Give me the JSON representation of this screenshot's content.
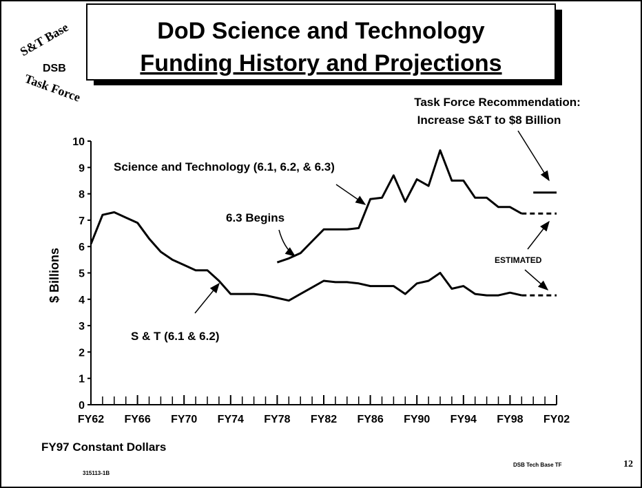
{
  "chart_data": {
    "type": "line",
    "title_lines": [
      "DoD Science and Technology",
      "Funding History and Projections"
    ],
    "logo": [
      "S&T Base",
      "DSB",
      "Task Force"
    ],
    "ylabel": "$ Billions",
    "xlabel_note": "FY97 Constant Dollars",
    "footer_left": "315113-1B",
    "footer_right": "DSB Tech Base TF",
    "page_number": "12",
    "xlim": [
      1962,
      2002
    ],
    "ylim": [
      0,
      10
    ],
    "yticks": [
      0,
      1,
      2,
      3,
      4,
      5,
      6,
      7,
      8,
      9,
      10
    ],
    "xticks": [
      {
        "value": 1962,
        "label": "FY62"
      },
      {
        "value": 1966,
        "label": "FY66"
      },
      {
        "value": 1970,
        "label": "FY70"
      },
      {
        "value": 1974,
        "label": "FY74"
      },
      {
        "value": 1978,
        "label": "FY78"
      },
      {
        "value": 1982,
        "label": "FY82"
      },
      {
        "value": 1986,
        "label": "FY86"
      },
      {
        "value": 1990,
        "label": "FY90"
      },
      {
        "value": 1994,
        "label": "FY94"
      },
      {
        "value": 1998,
        "label": "FY98"
      },
      {
        "value": 2002,
        "label": "FY02"
      }
    ],
    "xminor_ticks": [
      1962,
      1963,
      1964,
      1965,
      1966,
      1967,
      1968,
      1969,
      1970,
      1971,
      1972,
      1973,
      1974,
      1975,
      1976,
      1977,
      1978,
      1979,
      1980,
      1981,
      1982,
      1983,
      1984,
      1985,
      1986,
      1987,
      1988,
      1989,
      1990,
      1991,
      1992,
      1993,
      1994,
      1995,
      1996,
      1997,
      1998,
      1999,
      2000,
      2001,
      2002
    ],
    "x": [
      1962,
      1963,
      1964,
      1965,
      1966,
      1967,
      1968,
      1969,
      1970,
      1971,
      1972,
      1973,
      1974,
      1975,
      1976,
      1977,
      1978,
      1979,
      1980,
      1981,
      1982,
      1983,
      1984,
      1985,
      1986,
      1987,
      1988,
      1989,
      1990,
      1991,
      1992,
      1993,
      1994,
      1995,
      1996,
      1997,
      1998,
      1999
    ],
    "series": [
      {
        "name": "S & T (6.1 & 6.2)",
        "color": "#000000",
        "values": [
          6.1,
          7.2,
          7.3,
          7.1,
          6.9,
          6.3,
          5.8,
          5.5,
          5.3,
          5.1,
          5.1,
          4.7,
          4.2,
          4.2,
          4.2,
          4.15,
          4.05,
          3.95,
          4.2,
          4.45,
          4.7,
          4.65,
          4.65,
          4.6,
          4.5,
          4.5,
          4.5,
          4.2,
          4.6,
          4.7,
          5.0,
          4.4,
          4.5,
          4.2,
          4.15,
          4.15,
          4.25,
          4.15
        ]
      },
      {
        "name": "Science and Technology (6.1, 6.2, & 6.3)",
        "color": "#000000",
        "values": [
          null,
          null,
          null,
          null,
          null,
          null,
          null,
          null,
          null,
          null,
          null,
          null,
          null,
          null,
          null,
          null,
          5.4,
          5.55,
          5.75,
          6.2,
          6.65,
          6.65,
          6.65,
          6.7,
          7.8,
          7.85,
          8.7,
          7.7,
          8.55,
          8.3,
          9.65,
          8.5,
          8.5,
          7.85,
          7.85,
          7.5,
          7.5,
          7.25
        ]
      }
    ],
    "estimated": {
      "label": "ESTIMATED",
      "x": [
        1999,
        2002
      ],
      "series": [
        {
          "values": [
            4.15,
            4.15
          ]
        },
        {
          "values": [
            7.25,
            7.25
          ]
        }
      ]
    },
    "recommendation": {
      "label_lines": [
        "Task Force Recommendation:",
        "Increase S&T to $8 Billion"
      ],
      "x": [
        2000,
        2002
      ],
      "values": [
        8.05,
        8.05
      ]
    },
    "milestone": "6.3 Begins"
  }
}
